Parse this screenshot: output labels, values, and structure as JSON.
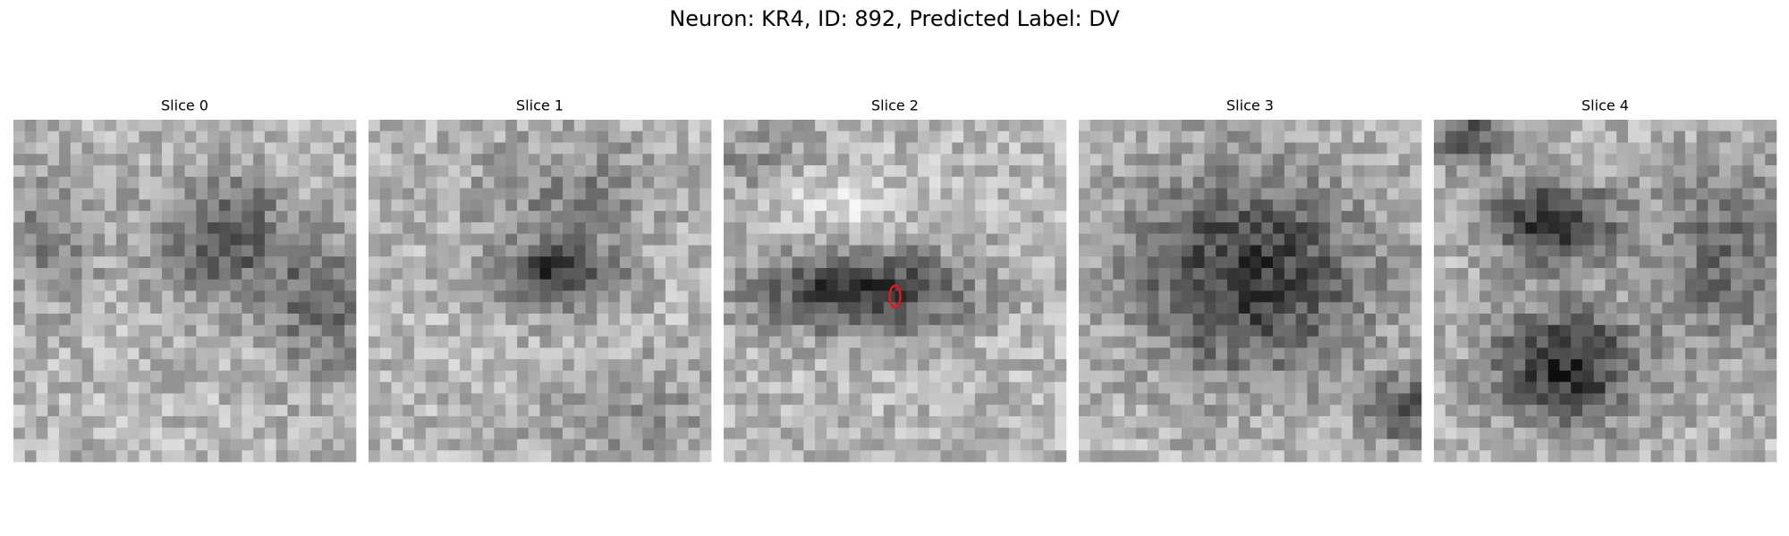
{
  "title": "Neuron: KR4, ID: 892, Predicted Label: DV",
  "panels": [
    {
      "label": "Slice 0"
    },
    {
      "label": "Slice 1"
    },
    {
      "label": "Slice 2"
    },
    {
      "label": "Slice 3"
    },
    {
      "label": "Slice 4"
    }
  ]
}
